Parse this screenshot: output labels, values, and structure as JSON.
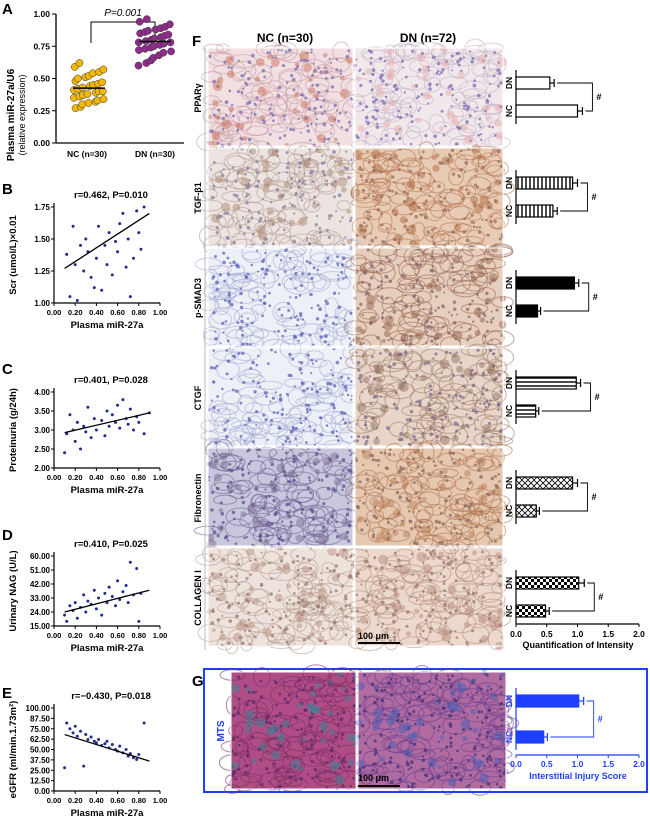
{
  "panel_labels": {
    "A": "A",
    "B": "B",
    "C": "C",
    "D": "D",
    "E": "E",
    "F": "F",
    "G": "G"
  },
  "colors": {
    "nc_point": "#f2b705",
    "dn_point": "#8e2c8a",
    "scatter_point": "#1f2d8a",
    "g_blue": "#1f3fff",
    "he_pink": "#c98aa0",
    "ihc_brown": "#b77a52",
    "ihc_blue": "#a6a8d6"
  },
  "panel_a": {
    "ylabel_1": "Plasma miR-27a/U6",
    "ylabel_2": "(relative expression)",
    "p_text": "P=0.001",
    "yticks": [
      "0.00",
      "0.25",
      "0.50",
      "0.75",
      "1.00"
    ],
    "categories": [
      "NC (n=30)",
      "DN (n=30)"
    ]
  },
  "panel_f": {
    "col_nc": "NC (n=30)",
    "col_dn": "DN (n=72)",
    "rows": [
      "PPARγ",
      "TGF-β1",
      "p-SMAD3",
      "CTGF",
      "Fibronectin",
      "COLLAGEN I"
    ],
    "bar_dn": "DN",
    "bar_nc": "NC",
    "sig": "#",
    "xticks": [
      "0.0",
      "0.5",
      "1.0",
      "1.5",
      "2.0"
    ],
    "xlabel": "Quantification of Intensity",
    "scale": "100 μm"
  },
  "panel_g": {
    "row": "MTS",
    "bar_dn": "DN",
    "bar_nc": "NC",
    "sig": "#",
    "xticks": [
      "0.0",
      "0.5",
      "1.0",
      "1.5",
      "2.0"
    ],
    "xlabel": "Interstitial Injury Score",
    "scale": "100 μm"
  },
  "chart_data": [
    {
      "type": "scatter",
      "panel": "A",
      "categories": [
        "NC (n=30)",
        "DN (n=30)"
      ],
      "series": [
        {
          "name": "NC (n=30)",
          "values": [
            0.27,
            0.28,
            0.3,
            0.31,
            0.32,
            0.33,
            0.34,
            0.35,
            0.36,
            0.37,
            0.38,
            0.39,
            0.4,
            0.4,
            0.41,
            0.42,
            0.43,
            0.44,
            0.45,
            0.46,
            0.47,
            0.48,
            0.5,
            0.51,
            0.52,
            0.54,
            0.55,
            0.57,
            0.59,
            0.62
          ]
        },
        {
          "name": "DN (n=30)",
          "values": [
            0.6,
            0.62,
            0.64,
            0.66,
            0.68,
            0.7,
            0.71,
            0.72,
            0.73,
            0.74,
            0.75,
            0.76,
            0.77,
            0.78,
            0.78,
            0.79,
            0.8,
            0.81,
            0.82,
            0.83,
            0.84,
            0.85,
            0.86,
            0.87,
            0.88,
            0.89,
            0.9,
            0.92,
            0.94,
            0.96
          ]
        }
      ],
      "ylabel": "Plasma miR-27a/U6 (relative expression)",
      "ylim": [
        0,
        1
      ],
      "annotation": "P=0.001"
    },
    {
      "type": "scatter",
      "panel": "B",
      "annotation": "r=0.462, P=0.010",
      "xlabel": "Plasma miR-27a",
      "ylabel": "Scr (umol/L)×0.01",
      "xlim": [
        0,
        1
      ],
      "ylim": [
        1.0,
        1.75
      ],
      "xticks": [
        "0.00",
        "0.20",
        "0.40",
        "0.60",
        "0.80",
        "1.00"
      ],
      "yticks": [
        "1.00",
        "1.25",
        "1.50",
        "1.75"
      ],
      "x": [
        0.12,
        0.15,
        0.18,
        0.2,
        0.22,
        0.25,
        0.28,
        0.3,
        0.32,
        0.35,
        0.38,
        0.4,
        0.42,
        0.45,
        0.48,
        0.5,
        0.52,
        0.55,
        0.58,
        0.6,
        0.62,
        0.65,
        0.68,
        0.7,
        0.72,
        0.75,
        0.78,
        0.8,
        0.82,
        0.85
      ],
      "y": [
        1.38,
        1.05,
        1.6,
        1.3,
        1.02,
        1.45,
        1.25,
        1.5,
        1.4,
        1.2,
        1.12,
        1.35,
        1.6,
        1.1,
        1.45,
        1.3,
        1.55,
        1.22,
        1.48,
        1.4,
        1.62,
        1.7,
        1.28,
        1.5,
        1.05,
        1.35,
        1.72,
        1.55,
        1.42,
        1.75
      ],
      "fit_line": {
        "x": [
          0.1,
          0.9
        ],
        "y": [
          1.27,
          1.7
        ]
      }
    },
    {
      "type": "scatter",
      "panel": "C",
      "annotation": "r=0.401, P=0.028",
      "xlabel": "Plasma miR-27a",
      "ylabel": "Proteinuria (g/24h)",
      "xlim": [
        0,
        1
      ],
      "ylim": [
        2.0,
        4.0
      ],
      "xticks": [
        "0.00",
        "0.20",
        "0.40",
        "0.60",
        "0.80",
        "1.00"
      ],
      "yticks": [
        "2.00",
        "2.50",
        "3.00",
        "3.50",
        "4.00"
      ],
      "x": [
        0.1,
        0.12,
        0.15,
        0.18,
        0.2,
        0.22,
        0.25,
        0.28,
        0.3,
        0.32,
        0.35,
        0.38,
        0.4,
        0.45,
        0.48,
        0.5,
        0.52,
        0.55,
        0.58,
        0.6,
        0.62,
        0.65,
        0.68,
        0.7,
        0.72,
        0.75,
        0.78,
        0.8,
        0.85,
        0.9
      ],
      "y": [
        2.4,
        2.9,
        3.4,
        3.0,
        2.7,
        3.2,
        2.5,
        3.1,
        2.95,
        3.6,
        2.8,
        3.3,
        3.0,
        3.25,
        2.85,
        3.5,
        3.1,
        3.4,
        3.2,
        3.65,
        3.05,
        3.8,
        3.3,
        3.15,
        3.55,
        3.0,
        3.35,
        3.2,
        2.9,
        3.45
      ],
      "fit_line": {
        "x": [
          0.1,
          0.9
        ],
        "y": [
          2.93,
          3.45
        ]
      }
    },
    {
      "type": "scatter",
      "panel": "D",
      "annotation": "r=0.410, P=0.025",
      "xlabel": "Plasma miR-27a",
      "ylabel": "Urinary NAG (U/L)",
      "xlim": [
        0,
        1
      ],
      "ylim": [
        15,
        60
      ],
      "xticks": [
        "0.00",
        "0.20",
        "0.40",
        "0.60",
        "0.80",
        "1.00"
      ],
      "yticks": [
        "15.00",
        "24.00",
        "33.00",
        "42.00",
        "51.00",
        "60.00"
      ],
      "x": [
        0.1,
        0.12,
        0.15,
        0.18,
        0.2,
        0.22,
        0.25,
        0.28,
        0.3,
        0.32,
        0.35,
        0.38,
        0.4,
        0.42,
        0.45,
        0.48,
        0.5,
        0.52,
        0.55,
        0.58,
        0.6,
        0.62,
        0.65,
        0.68,
        0.7,
        0.72,
        0.75,
        0.78,
        0.8,
        0.82
      ],
      "y": [
        22,
        18,
        28,
        25,
        30,
        20,
        27,
        35,
        24,
        31,
        29,
        38,
        26,
        33,
        22,
        36,
        30,
        40,
        34,
        28,
        44,
        32,
        37,
        41,
        30,
        56,
        35,
        52,
        18,
        36
      ],
      "fit_line": {
        "x": [
          0.1,
          0.9
        ],
        "y": [
          24,
          38
        ]
      }
    },
    {
      "type": "scatter",
      "panel": "E",
      "annotation": "r=−0.430, P=0.018",
      "xlabel": "Plasma miR-27a",
      "ylabel": "eGFR (ml/min.1.73m²)",
      "xlim": [
        0,
        1
      ],
      "ylim": [
        0,
        100
      ],
      "xticks": [
        "0.00",
        "0.20",
        "0.40",
        "0.60",
        "0.80",
        "1.00"
      ],
      "yticks": [
        "0.00",
        "12.50",
        "25.00",
        "37.50",
        "50.00",
        "62.50",
        "75.00",
        "87.50",
        "100.00"
      ],
      "x": [
        0.1,
        0.12,
        0.15,
        0.18,
        0.2,
        0.22,
        0.25,
        0.28,
        0.3,
        0.32,
        0.35,
        0.38,
        0.4,
        0.42,
        0.45,
        0.48,
        0.5,
        0.52,
        0.55,
        0.58,
        0.6,
        0.62,
        0.65,
        0.68,
        0.7,
        0.72,
        0.75,
        0.78,
        0.8,
        0.85
      ],
      "y": [
        28,
        82,
        75,
        70,
        78,
        66,
        72,
        30,
        68,
        62,
        65,
        60,
        58,
        62,
        55,
        57,
        60,
        52,
        56,
        50,
        48,
        54,
        46,
        50,
        42,
        45,
        40,
        38,
        44,
        82
      ],
      "fit_line": {
        "x": [
          0.1,
          0.9
        ],
        "y": [
          68,
          36
        ]
      }
    },
    {
      "type": "bar",
      "panel": "F",
      "orientation": "horizontal",
      "xlabel": "Quantification of Intensity",
      "xlim": [
        0,
        2
      ],
      "categories": [
        "NC",
        "DN"
      ],
      "series": [
        {
          "name": "PPARγ",
          "values": [
            1.0,
            0.55
          ],
          "errors": [
            0.08,
            0.07
          ]
        },
        {
          "name": "TGF-β1",
          "values": [
            0.6,
            0.92
          ],
          "errors": [
            0.07,
            0.08
          ]
        },
        {
          "name": "p-SMAD3",
          "values": [
            0.35,
            0.95
          ],
          "errors": [
            0.05,
            0.07
          ]
        },
        {
          "name": "CTGF",
          "values": [
            0.32,
            0.98
          ],
          "errors": [
            0.05,
            0.07
          ]
        },
        {
          "name": "Fibronectin",
          "values": [
            0.33,
            0.92
          ],
          "errors": [
            0.05,
            0.08
          ]
        },
        {
          "name": "COLLAGEN I",
          "values": [
            0.48,
            1.02
          ],
          "errors": [
            0.06,
            0.09
          ]
        }
      ],
      "annotation": "#"
    },
    {
      "type": "bar",
      "panel": "G",
      "orientation": "horizontal",
      "xlabel": "Interstitial Injury Score",
      "xlim": [
        0,
        2
      ],
      "categories": [
        "NC",
        "DN"
      ],
      "values": [
        0.45,
        1.02
      ],
      "errors": [
        0.06,
        0.08
      ],
      "annotation": "#"
    }
  ]
}
